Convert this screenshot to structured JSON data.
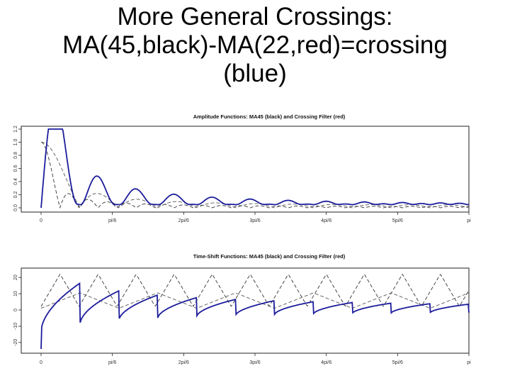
{
  "slide": {
    "title_lines": [
      "More General Crossings:",
      "MA(45,black)-MA(22,red)=crossing",
      "(blue)"
    ]
  },
  "chart_data": [
    {
      "type": "line",
      "title": "Amplitude Functions: MA45 (black) and Crossing Filter (red)",
      "xlabel": "",
      "ylabel": "",
      "x_ticks": [
        "0",
        "pi/6",
        "2pi/6",
        "3pi/6",
        "4pi/6",
        "5pi/6",
        "pi"
      ],
      "y_ticks": [
        "0.0",
        "0.2",
        "0.4",
        "0.6",
        "0.8",
        "1.0",
        "1.2"
      ],
      "xlim": [
        0,
        3.1416
      ],
      "ylim": [
        0,
        1.2
      ],
      "grid": false,
      "series": [
        {
          "color": "#333333",
          "dash": true,
          "kind": "ma_amplitude",
          "n": 45
        },
        {
          "color": "#555555",
          "dash": true,
          "kind": "ma_amplitude",
          "n": 22
        },
        {
          "color": "#d04040",
          "dash": false,
          "kind": "crossing_amplitude"
        },
        {
          "color": "#1c1c9c",
          "dash": false,
          "kind": "crossing_amplitude"
        }
      ]
    },
    {
      "type": "line",
      "title": "Time-Shift Functions: MA45 (black) and Crossing Filter (red)",
      "xlabel": "",
      "ylabel": "",
      "x_ticks": [
        "0",
        "pi/6",
        "2pi/6",
        "3pi/6",
        "4pi/6",
        "5pi/6",
        "pi"
      ],
      "y_ticks": [
        "-20",
        "-10",
        "0",
        "10",
        "20"
      ],
      "xlim": [
        0,
        3.1416
      ],
      "ylim": [
        -24,
        24
      ],
      "grid": false,
      "series": [
        {
          "color": "#333333",
          "dash": true,
          "kind": "ma_shift",
          "n": 45
        },
        {
          "color": "#555555",
          "dash": true,
          "kind": "ma_shift",
          "n": 22
        },
        {
          "color": "#d04040",
          "dash": false,
          "kind": "crossing_shift"
        },
        {
          "color": "#1c1c9c",
          "dash": false,
          "kind": "crossing_shift"
        }
      ]
    }
  ]
}
